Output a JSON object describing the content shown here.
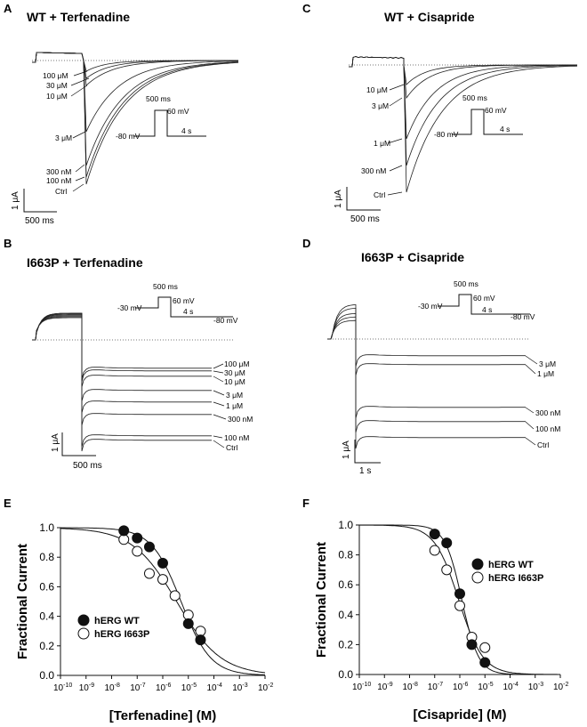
{
  "panels": {
    "A": {
      "letter": "A",
      "title": "WT + Terfenadine",
      "labels": [
        "100 μM",
        "30 μM",
        "10 μM",
        "3 μM",
        "300 nM",
        "100 nM",
        "Ctrl"
      ],
      "protocol": {
        "duration": "500 ms",
        "hold": "-80 mV",
        "step": "60 mV",
        "tail": "4 s"
      },
      "scale": {
        "y": "1 μA",
        "x": "500 ms"
      }
    },
    "B": {
      "letter": "B",
      "title": "I663P + Terfenadine",
      "labels": [
        "100 μM",
        "30 μM",
        "10 μM",
        "3 μM",
        "1 μM",
        "300 nM",
        "100 nM",
        "Ctrl"
      ],
      "protocol": {
        "duration": "500 ms",
        "hold": "-30 mV",
        "step": "60 mV",
        "tail": "4 s",
        "post": "-80 mV"
      },
      "scale": {
        "y": "1 μA",
        "x": "500 ms"
      }
    },
    "C": {
      "letter": "C",
      "title": "WT + Cisapride",
      "labels": [
        "10 μM",
        "3 μM",
        "1 μM",
        "300 nM",
        "Ctrl"
      ],
      "protocol": {
        "duration": "500 ms",
        "hold": "-80 mV",
        "step": "60 mV",
        "tail": "4 s"
      },
      "scale": {
        "y": "1 μA",
        "x": "500 ms"
      }
    },
    "D": {
      "letter": "D",
      "title": "I663P + Cisapride",
      "labels": [
        "3 μM",
        "1 μM",
        "300 nM",
        "100 nM",
        "Ctrl"
      ],
      "protocol": {
        "duration": "500 ms",
        "hold": "-30 mV",
        "step": "60 mV",
        "tail": "4 s",
        "post": "-80 mV"
      },
      "scale": {
        "y": "1 μA",
        "x": "1 s"
      }
    }
  },
  "colors": {
    "filled": "#111111",
    "open": "#ffffff",
    "trace": "#222222",
    "dotted": "#777777"
  },
  "chart_data": [
    {
      "type": "scatter",
      "panel": "E",
      "xlabel": "[Terfenadine] (M)",
      "ylabel": "Fractional Current",
      "xscale": "log",
      "xlim": [
        1e-10,
        0.01
      ],
      "ylim": [
        0,
        1.0
      ],
      "x_tick_labels": [
        "10-10",
        "10-9",
        "10-8",
        "10-7",
        "10-6",
        "10-5",
        "10-4",
        "10-3",
        "10-2"
      ],
      "y_tick_labels": [
        "0.0",
        "0.2",
        "0.4",
        "0.6",
        "0.8",
        "1.0"
      ],
      "legend_position": "left",
      "series": [
        {
          "name": "hERG WT",
          "marker": "filled",
          "x": [
            3e-08,
            1e-07,
            3e-07,
            1e-06,
            1e-05,
            3e-05
          ],
          "y": [
            0.98,
            0.93,
            0.87,
            0.76,
            0.35,
            0.24
          ],
          "fit_ic50": 5.2e-06,
          "fit_hill": 0.75
        },
        {
          "name": "hERG I663P",
          "marker": "open",
          "x": [
            3e-08,
            1e-07,
            3e-07,
            1e-06,
            3e-06,
            1e-05,
            3e-05
          ],
          "y": [
            0.92,
            0.84,
            0.69,
            0.65,
            0.54,
            0.41,
            0.3
          ],
          "fit_ic50": 3.5e-06,
          "fit_hill": 0.5
        }
      ]
    },
    {
      "type": "scatter",
      "panel": "F",
      "xlabel": "[Cisapride] (M)",
      "ylabel": "Fractional Current",
      "xscale": "log",
      "xlim": [
        1e-10,
        0.01
      ],
      "ylim": [
        0,
        1.0
      ],
      "x_tick_labels": [
        "10-10",
        "10-9",
        "10-8",
        "10-7",
        "10-6",
        "10-5",
        "10-4",
        "10-3",
        "10-2"
      ],
      "y_tick_labels": [
        "0.0",
        "0.2",
        "0.4",
        "0.6",
        "0.8",
        "1.0"
      ],
      "legend_position": "right",
      "series": [
        {
          "name": "hERG WT",
          "marker": "filled",
          "x": [
            1e-07,
            3e-07,
            1e-06,
            3e-06,
            1e-05
          ],
          "y": [
            0.94,
            0.88,
            0.54,
            0.2,
            0.08
          ],
          "fit_ic50": 1.2e-06,
          "fit_hill": 1.3
        },
        {
          "name": "hERG I663P",
          "marker": "open",
          "x": [
            1e-07,
            3e-07,
            1e-06,
            3e-06,
            1e-05
          ],
          "y": [
            0.83,
            0.7,
            0.46,
            0.25,
            0.18
          ],
          "fit_ic50": 9e-07,
          "fit_hill": 0.9
        }
      ]
    }
  ]
}
